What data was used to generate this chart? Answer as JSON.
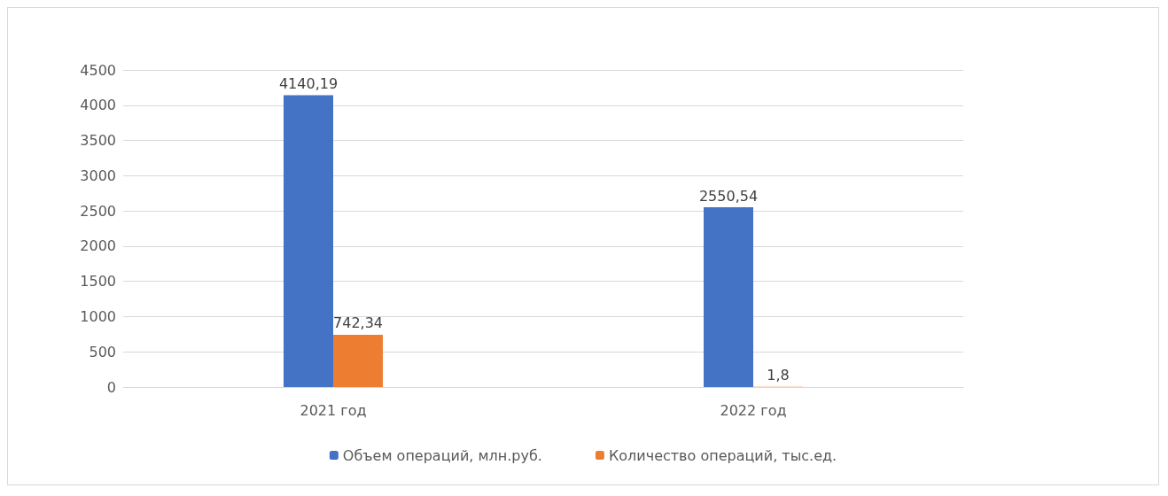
{
  "chart_data": {
    "type": "bar",
    "categories": [
      "2021 год",
      "2022 год"
    ],
    "series": [
      {
        "name": "Объем операций, млн.руб.",
        "color": "#4472c4",
        "values": [
          4140.19,
          2550.54
        ],
        "value_labels": [
          "4140,19",
          "2550,54"
        ]
      },
      {
        "name": "Количество операций, тыс.ед.",
        "color": "#ed7d31",
        "values": [
          742.34,
          1.8
        ],
        "value_labels": [
          "742,34",
          "1,8"
        ]
      }
    ],
    "ylim": [
      0,
      4500
    ],
    "yticks": [
      0,
      500,
      1000,
      1500,
      2000,
      2500,
      3000,
      3500,
      4000,
      4500
    ],
    "grid": "y",
    "legend": "bottom"
  }
}
